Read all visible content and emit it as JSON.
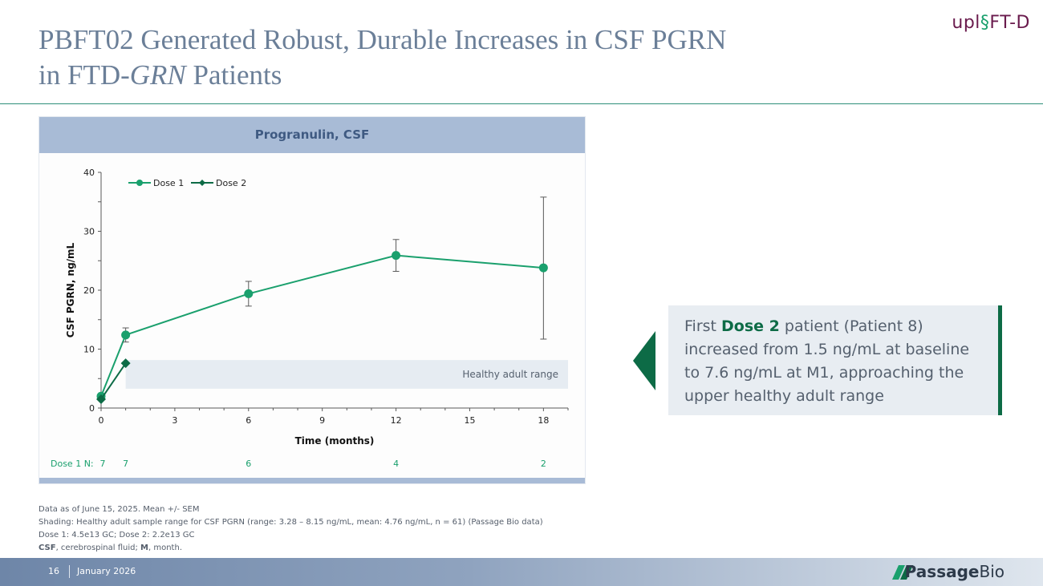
{
  "slide": {
    "title_line1": "PBFT02 Generated Robust, Durable Increases in CSF PGRN",
    "title_line2_prefix": "in FTD-",
    "title_line2_italic": "GRN",
    "title_line2_suffix": " Patients",
    "logo_part1": "upl",
    "logo_part2": "FT-D"
  },
  "panel": {
    "title": "Progranulin, CSF"
  },
  "chart_data": {
    "type": "line",
    "xlabel": "Time (months)",
    "ylabel": "CSF PGRN, ng/mL",
    "xlim": [
      0,
      19
    ],
    "ylim": [
      0,
      40
    ],
    "x_ticks": [
      "0",
      "3",
      "6",
      "9",
      "12",
      "15",
      "18"
    ],
    "y_ticks": [
      "0",
      "10",
      "20",
      "30",
      "40"
    ],
    "series": [
      {
        "name": "Dose 1",
        "color": "#1aa06d",
        "x": [
          0,
          1,
          6,
          12,
          18
        ],
        "y": [
          2.0,
          12.4,
          19.4,
          25.9,
          23.8
        ],
        "err_low": [
          null,
          11.2,
          17.3,
          23.2,
          11.7
        ],
        "err_high": [
          null,
          13.6,
          21.5,
          28.6,
          35.8
        ]
      },
      {
        "name": "Dose 2",
        "color": "#0d6b46",
        "x": [
          0,
          1
        ],
        "y": [
          1.5,
          7.6
        ]
      }
    ],
    "shaded_band": {
      "label": "Healthy adult range",
      "y_low": 3.28,
      "y_high": 8.15
    },
    "n_row": {
      "label": "Dose 1 N:",
      "x": [
        0,
        1,
        6,
        12,
        18
      ],
      "values": [
        "7",
        "7",
        "6",
        "4",
        "2"
      ]
    }
  },
  "callout": {
    "pre": "First ",
    "bold": "Dose 2",
    "post": " patient (Patient 8) increased from 1.5 ng/mL at baseline to 7.6 ng/mL at M1, approaching the upper healthy adult range"
  },
  "notes": {
    "line1": "Data as of June 15, 2025. Mean +/- SEM",
    "line2": "Shading: Healthy adult sample range for CSF PGRN (range: 3.28 – 8.15 ng/mL, mean: 4.76 ng/mL, n = 61) (Passage Bio data)",
    "line3": "Dose 1: 4.5e13 GC; Dose 2: 2.2e13 GC",
    "line4_b1": "CSF",
    "line4_t1": ", cerebrospinal fluid; ",
    "line4_b2": "M",
    "line4_t2": ", month."
  },
  "footer": {
    "page": "16",
    "date": "January 2026",
    "brand_part1": "Passage",
    "brand_part2": "Bio"
  }
}
